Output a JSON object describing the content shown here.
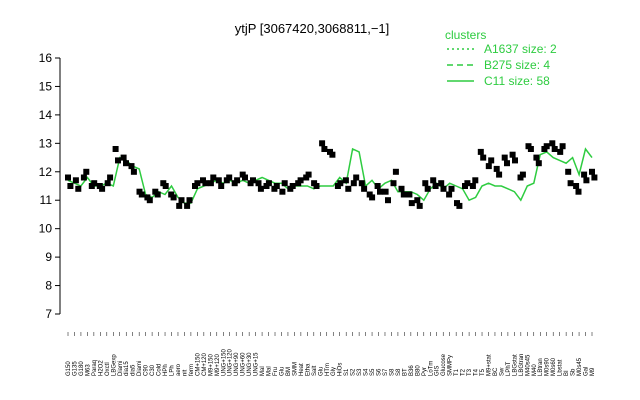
{
  "chart_data": {
    "type": "line",
    "title": "ytjP [3067420,3068811,−1]",
    "xlabel": "",
    "ylabel": "",
    "ylim": [
      7,
      16
    ],
    "yticks": [
      7,
      8,
      9,
      10,
      11,
      12,
      13,
      14,
      15,
      16
    ],
    "grid": false,
    "legend_position": "top-right",
    "legend_title": "clusters",
    "legend": [
      {
        "label": "A1637 size: 2",
        "style": "dotted"
      },
      {
        "label": "B275 size: 4",
        "style": "dashed"
      },
      {
        "label": "C11 size: 58",
        "style": "solid"
      }
    ],
    "color": "#2ecc40",
    "x_tick_labels": [
      "G150",
      "G135",
      "G180",
      "M63",
      "Paraq",
      "H2O2",
      "Oxctl",
      "LBGexp",
      "Diami",
      "dia15",
      "dia5",
      "Diami",
      "C90",
      "C30",
      "Cold",
      "HPh",
      "LPh",
      "aero",
      "nit",
      "ferm",
      "CM+150",
      "CM+120",
      "M9+150",
      "M9+120",
      "UNG+150",
      "UNG+120",
      "UNG+90",
      "UNG+60",
      "UNG+30",
      "UNG+15",
      "Mal",
      "Mal",
      "Fru",
      "Glu",
      "BM",
      "SMM",
      "Heat",
      "Etha",
      "Salt",
      "Glu",
      "HTm",
      "Gly",
      "HiOs",
      "S1",
      "S2",
      "S3",
      "S4",
      "S5",
      "S6",
      "S7",
      "S8",
      "S8",
      "BT",
      "B36",
      "B80",
      "Pyr",
      "LoTm",
      "GIS",
      "Glucose",
      "SMMPy",
      "T1",
      "T2",
      "T3",
      "T4",
      "T5",
      "M9+stat",
      "BC",
      "Sw",
      "LPhT",
      "LBGstat",
      "LBGtran",
      "M40s45",
      "M40",
      "LBtran",
      "M0s90",
      "M0s60",
      "Lbstat",
      "BI",
      "Sb",
      "M0s45",
      "Gal",
      "M9"
    ],
    "lines": [
      {
        "name": "C11",
        "style": "solid",
        "x": [
          1,
          2,
          3,
          4,
          5,
          6,
          7,
          8,
          9,
          10,
          11,
          12,
          13,
          14,
          15,
          16,
          17,
          18,
          19,
          20,
          21,
          22,
          23,
          24,
          25,
          26,
          27,
          28,
          29,
          30,
          31,
          32,
          33,
          34,
          35,
          36,
          37,
          38,
          39,
          40,
          41,
          42,
          43,
          44,
          45,
          46,
          47,
          48,
          49,
          50,
          51,
          52,
          53,
          54,
          55,
          56,
          57,
          58,
          59,
          60,
          61,
          62,
          63,
          64,
          65,
          66,
          67,
          68,
          69,
          70,
          71,
          72,
          73,
          74,
          75,
          76,
          77,
          78,
          79,
          80,
          81,
          82
        ],
        "y": [
          11.7,
          11.6,
          11.5,
          11.8,
          11.5,
          11.5,
          11.6,
          11.5,
          12.5,
          12.4,
          12.2,
          12.1,
          11.2,
          11.1,
          11.3,
          11.2,
          11.5,
          11.1,
          10.9,
          10.9,
          11.4,
          11.5,
          11.6,
          11.7,
          11.6,
          11.7,
          11.6,
          11.7,
          11.6,
          11.7,
          11.8,
          11.7,
          11.6,
          11.6,
          11.4,
          11.5,
          11.5,
          11.5,
          11.4,
          11.5,
          11.5,
          11.5,
          11.8,
          11.6,
          12.8,
          12.7,
          11.5,
          11.7,
          11.4,
          11.6,
          11.7,
          11.3,
          11.3,
          11.3,
          11.2,
          11.0,
          11.4,
          11.6,
          11.4,
          11.6,
          11.5,
          11.4,
          11.0,
          11.1,
          11.5,
          11.6,
          11.5,
          11.5,
          11.4,
          11.3,
          11.0,
          11.5,
          11.6,
          12.6,
          12.7,
          12.5,
          12.4,
          12.3,
          12.5,
          11.9,
          12.8,
          12.5
        ]
      }
    ],
    "points": [
      {
        "x": 1,
        "y": 11.8
      },
      {
        "x": 1.3,
        "y": 11.5
      },
      {
        "x": 2,
        "y": 11.7
      },
      {
        "x": 2.3,
        "y": 11.4
      },
      {
        "x": 3,
        "y": 11.8
      },
      {
        "x": 3.3,
        "y": 12.0
      },
      {
        "x": 4,
        "y": 11.5
      },
      {
        "x": 4.3,
        "y": 11.6
      },
      {
        "x": 5,
        "y": 11.5
      },
      {
        "x": 5.3,
        "y": 11.4
      },
      {
        "x": 6,
        "y": 11.6
      },
      {
        "x": 6.3,
        "y": 11.8
      },
      {
        "x": 7,
        "y": 12.8
      },
      {
        "x": 7.3,
        "y": 12.4
      },
      {
        "x": 8,
        "y": 12.5
      },
      {
        "x": 8.3,
        "y": 12.3
      },
      {
        "x": 9,
        "y": 12.2
      },
      {
        "x": 9.3,
        "y": 12.0
      },
      {
        "x": 10,
        "y": 11.3
      },
      {
        "x": 10.3,
        "y": 11.2
      },
      {
        "x": 11,
        "y": 11.1
      },
      {
        "x": 11.3,
        "y": 11.0
      },
      {
        "x": 12,
        "y": 11.3
      },
      {
        "x": 12.3,
        "y": 11.2
      },
      {
        "x": 13,
        "y": 11.6
      },
      {
        "x": 13.3,
        "y": 11.5
      },
      {
        "x": 14,
        "y": 11.2
      },
      {
        "x": 14.3,
        "y": 11.1
      },
      {
        "x": 15,
        "y": 10.8
      },
      {
        "x": 15.3,
        "y": 11.0
      },
      {
        "x": 16,
        "y": 10.8
      },
      {
        "x": 16.3,
        "y": 11.0
      },
      {
        "x": 17,
        "y": 11.5
      },
      {
        "x": 17.3,
        "y": 11.6
      },
      {
        "x": 18,
        "y": 11.7
      },
      {
        "x": 18.3,
        "y": 11.6
      },
      {
        "x": 19,
        "y": 11.6
      },
      {
        "x": 19.3,
        "y": 11.8
      },
      {
        "x": 20,
        "y": 11.7
      },
      {
        "x": 20.3,
        "y": 11.5
      },
      {
        "x": 21,
        "y": 11.7
      },
      {
        "x": 21.3,
        "y": 11.8
      },
      {
        "x": 22,
        "y": 11.6
      },
      {
        "x": 22.3,
        "y": 11.7
      },
      {
        "x": 23,
        "y": 11.9
      },
      {
        "x": 23.3,
        "y": 11.8
      },
      {
        "x": 24,
        "y": 11.6
      },
      {
        "x": 24.3,
        "y": 11.7
      },
      {
        "x": 25,
        "y": 11.6
      },
      {
        "x": 25.3,
        "y": 11.4
      },
      {
        "x": 26,
        "y": 11.5
      },
      {
        "x": 26.3,
        "y": 11.6
      },
      {
        "x": 27,
        "y": 11.4
      },
      {
        "x": 27.3,
        "y": 11.5
      },
      {
        "x": 28,
        "y": 11.3
      },
      {
        "x": 28.3,
        "y": 11.6
      },
      {
        "x": 29,
        "y": 11.4
      },
      {
        "x": 29.3,
        "y": 11.5
      },
      {
        "x": 30,
        "y": 11.6
      },
      {
        "x": 30.3,
        "y": 11.7
      },
      {
        "x": 31,
        "y": 11.8
      },
      {
        "x": 31.3,
        "y": 11.9
      },
      {
        "x": 32,
        "y": 11.6
      },
      {
        "x": 32.3,
        "y": 11.5
      },
      {
        "x": 33,
        "y": 13.0
      },
      {
        "x": 33.3,
        "y": 12.8
      },
      {
        "x": 34,
        "y": 12.7
      },
      {
        "x": 34.3,
        "y": 12.6
      },
      {
        "x": 35,
        "y": 11.5
      },
      {
        "x": 35.3,
        "y": 11.6
      },
      {
        "x": 36,
        "y": 11.7
      },
      {
        "x": 36.3,
        "y": 11.4
      },
      {
        "x": 37,
        "y": 11.6
      },
      {
        "x": 37.3,
        "y": 11.8
      },
      {
        "x": 38,
        "y": 11.6
      },
      {
        "x": 38.3,
        "y": 11.4
      },
      {
        "x": 39,
        "y": 11.2
      },
      {
        "x": 39.3,
        "y": 11.1
      },
      {
        "x": 40,
        "y": 11.5
      },
      {
        "x": 40.3,
        "y": 11.3
      },
      {
        "x": 41,
        "y": 11.3
      },
      {
        "x": 41.3,
        "y": 11.0
      },
      {
        "x": 42,
        "y": 11.6
      },
      {
        "x": 42.3,
        "y": 12.0
      },
      {
        "x": 43,
        "y": 11.4
      },
      {
        "x": 43.3,
        "y": 11.2
      },
      {
        "x": 44,
        "y": 11.2
      },
      {
        "x": 44.3,
        "y": 10.9
      },
      {
        "x": 45,
        "y": 11.0
      },
      {
        "x": 45.3,
        "y": 10.8
      },
      {
        "x": 46,
        "y": 11.6
      },
      {
        "x": 46.3,
        "y": 11.4
      },
      {
        "x": 47,
        "y": 11.7
      },
      {
        "x": 47.3,
        "y": 11.5
      },
      {
        "x": 48,
        "y": 11.6
      },
      {
        "x": 48.3,
        "y": 11.4
      },
      {
        "x": 49,
        "y": 11.2
      },
      {
        "x": 49.3,
        "y": 11.4
      },
      {
        "x": 50,
        "y": 10.9
      },
      {
        "x": 50.3,
        "y": 10.8
      },
      {
        "x": 51,
        "y": 11.5
      },
      {
        "x": 51.3,
        "y": 11.6
      },
      {
        "x": 52,
        "y": 11.5
      },
      {
        "x": 52.3,
        "y": 11.7
      },
      {
        "x": 53,
        "y": 12.7
      },
      {
        "x": 53.3,
        "y": 12.5
      },
      {
        "x": 54,
        "y": 12.2
      },
      {
        "x": 54.3,
        "y": 12.4
      },
      {
        "x": 55,
        "y": 12.1
      },
      {
        "x": 55.3,
        "y": 11.9
      },
      {
        "x": 56,
        "y": 12.5
      },
      {
        "x": 56.3,
        "y": 12.3
      },
      {
        "x": 57,
        "y": 12.6
      },
      {
        "x": 57.3,
        "y": 12.4
      },
      {
        "x": 58,
        "y": 11.8
      },
      {
        "x": 58.3,
        "y": 11.9
      },
      {
        "x": 59,
        "y": 12.9
      },
      {
        "x": 59.3,
        "y": 12.8
      },
      {
        "x": 60,
        "y": 12.5
      },
      {
        "x": 60.3,
        "y": 12.3
      },
      {
        "x": 61,
        "y": 12.8
      },
      {
        "x": 61.3,
        "y": 12.9
      },
      {
        "x": 62,
        "y": 13.0
      },
      {
        "x": 62.3,
        "y": 12.8
      },
      {
        "x": 63,
        "y": 12.7
      },
      {
        "x": 63.3,
        "y": 12.9
      },
      {
        "x": 64,
        "y": 12.0
      },
      {
        "x": 64.3,
        "y": 11.6
      },
      {
        "x": 65,
        "y": 11.5
      },
      {
        "x": 65.3,
        "y": 11.3
      },
      {
        "x": 66,
        "y": 11.9
      },
      {
        "x": 66.3,
        "y": 11.7
      },
      {
        "x": 67,
        "y": 12.0
      },
      {
        "x": 67.3,
        "y": 11.8
      }
    ]
  }
}
